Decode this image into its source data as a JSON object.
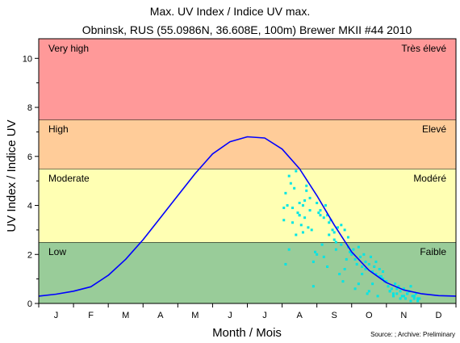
{
  "chart_data": {
    "type": "scatter",
    "title": "Max. UV Index / Indice UV max.",
    "subtitle": "Obninsk, RUS (55.0986N, 36.608E, 100m) Brewer MKII #44 2010",
    "xlabel": "Month / Mois",
    "ylabel": "UV Index / Indice UV",
    "source_note": "Source: ; Archive: Preliminary",
    "x_categories": [
      "J",
      "F",
      "M",
      "A",
      "M",
      "J",
      "J",
      "A",
      "S",
      "O",
      "N",
      "D"
    ],
    "xlim": [
      0,
      12
    ],
    "ylim": [
      0,
      10.8
    ],
    "y_ticks": [
      0,
      2,
      4,
      6,
      8,
      10
    ],
    "bands": [
      {
        "from": 0,
        "to": 2.5,
        "color": "#99cc99",
        "label_en": "Low",
        "label_fr": "Faible"
      },
      {
        "from": 2.5,
        "to": 5.5,
        "color": "#ffffb3",
        "label_en": "Moderate",
        "label_fr": "Modéré"
      },
      {
        "from": 5.5,
        "to": 7.5,
        "color": "#ffcc99",
        "label_en": "High",
        "label_fr": "Elevé"
      },
      {
        "from": 7.5,
        "to": 10.8,
        "color": "#ff9999",
        "label_en": "Very high",
        "label_fr": "Très élevé"
      }
    ],
    "series": [
      {
        "kind": "line",
        "color": "#0000ff",
        "x": [
          0,
          0.5,
          1,
          1.5,
          2,
          2.5,
          3,
          3.5,
          4,
          4.5,
          5,
          5.5,
          6,
          6.5,
          7,
          7.5,
          8,
          8.5,
          9,
          9.5,
          10,
          10.5,
          11,
          11.5,
          12
        ],
        "y": [
          0.3,
          0.38,
          0.5,
          0.68,
          1.15,
          1.8,
          2.6,
          3.5,
          4.4,
          5.3,
          6.1,
          6.6,
          6.8,
          6.75,
          6.3,
          5.5,
          4.4,
          3.2,
          2.1,
          1.35,
          0.85,
          0.55,
          0.4,
          0.32,
          0.3
        ]
      },
      {
        "kind": "scatter",
        "color": "#00e5e5",
        "x": [
          7.05,
          7.1,
          7.2,
          7.25,
          7.3,
          7.4,
          7.45,
          7.5,
          7.55,
          7.6,
          7.65,
          7.7,
          7.75,
          7.8,
          7.85,
          7.1,
          7.2,
          7.3,
          7.4,
          7.5,
          7.6,
          7.7,
          7.8,
          7.9,
          7.95,
          7.05,
          7.15,
          7.35,
          7.5,
          7.65,
          7.9,
          8.0,
          8.1,
          8.15,
          8.2,
          8.25,
          8.3,
          8.35,
          8.4,
          8.45,
          8.5,
          8.55,
          8.6,
          8.65,
          8.7,
          8.75,
          8.8,
          8.85,
          8.9,
          8.95,
          8.0,
          8.1,
          8.3,
          8.5,
          8.7,
          8.9,
          8.05,
          8.2,
          8.35,
          8.55,
          8.8,
          9.0,
          9.05,
          9.1,
          9.15,
          9.2,
          9.25,
          9.3,
          9.35,
          9.4,
          9.45,
          9.5,
          9.55,
          9.6,
          9.65,
          9.7,
          9.75,
          9.8,
          9.85,
          9.9,
          9.95,
          9.1,
          9.3,
          9.5,
          9.7,
          9.9,
          9.2,
          9.4,
          9.6,
          9.8,
          10.0,
          10.05,
          10.1,
          10.15,
          10.2,
          10.25,
          10.3,
          10.35,
          10.4,
          10.45,
          10.5,
          10.55,
          10.6,
          10.65,
          10.7,
          10.75,
          10.8,
          10.85,
          10.9,
          10.95,
          10.1,
          10.3,
          10.5,
          10.7,
          10.9,
          10.2,
          10.4,
          10.6,
          10.8
        ],
        "y": [
          3.4,
          4.5,
          5.2,
          4.9,
          3.3,
          5.4,
          3.7,
          4.1,
          3.2,
          4.0,
          3.5,
          4.8,
          3.1,
          4.3,
          3.0,
          1.6,
          2.2,
          3.9,
          2.8,
          3.6,
          2.9,
          4.6,
          3.8,
          0.7,
          2.1,
          3.9,
          4.0,
          4.7,
          3.6,
          4.2,
          1.7,
          4.1,
          3.8,
          2.4,
          3.5,
          4.0,
          3.6,
          2.8,
          3.4,
          3.0,
          2.6,
          2.2,
          3.1,
          1.2,
          2.4,
          0.9,
          3.0,
          1.8,
          2.7,
          2.1,
          2.0,
          3.6,
          1.5,
          2.9,
          3.2,
          2.3,
          3.7,
          1.9,
          3.3,
          2.5,
          1.4,
          2.0,
          2.2,
          1.8,
          1.6,
          0.8,
          1.9,
          1.5,
          2.0,
          1.7,
          0.4,
          1.6,
          1.9,
          1.3,
          1.5,
          1.2,
          0.3,
          1.4,
          1.1,
          1.3,
          0.9,
          0.6,
          1.2,
          0.5,
          1.7,
          1.0,
          2.3,
          1.4,
          0.8,
          1.1,
          0.9,
          0.7,
          0.5,
          0.6,
          0.3,
          0.8,
          0.4,
          0.7,
          0.5,
          0.3,
          0.6,
          0.2,
          0.4,
          0.5,
          0.1,
          0.3,
          0.2,
          0.4,
          0.1,
          0.2,
          0.5,
          0.6,
          0.3,
          0.7,
          0.2,
          0.4,
          0.2,
          0.4,
          0.3
        ]
      }
    ]
  }
}
